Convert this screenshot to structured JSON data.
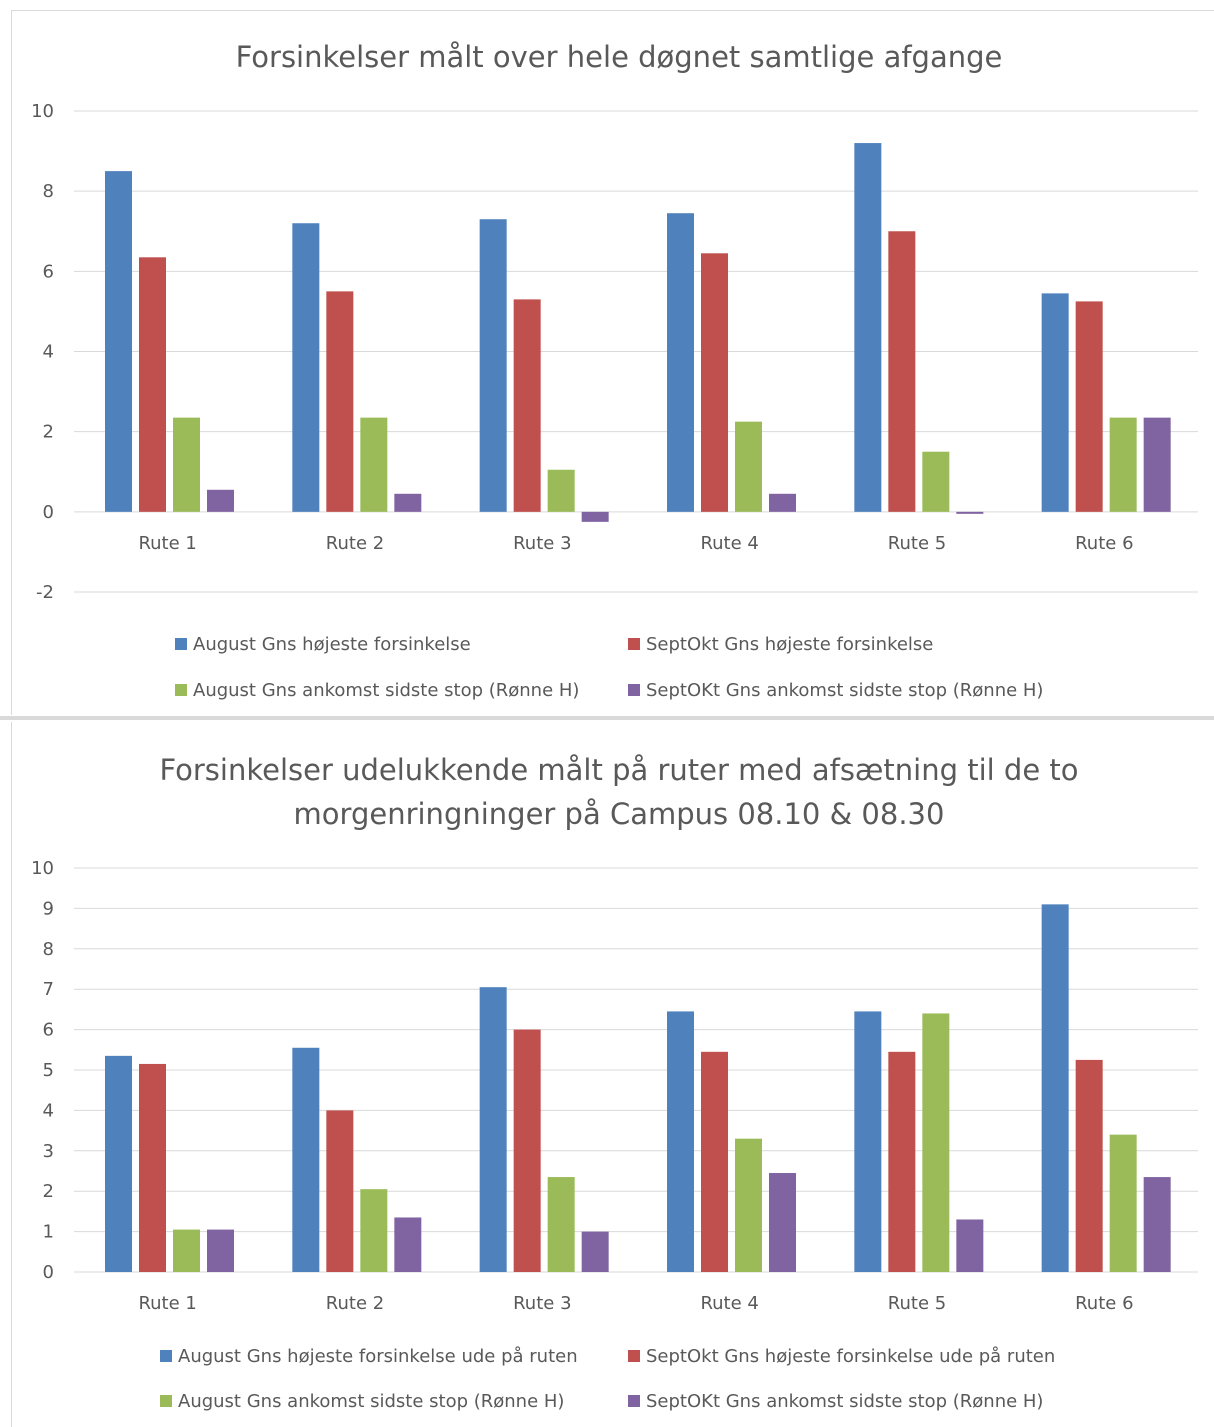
{
  "chart_data": [
    {
      "type": "bar",
      "title": "Forsinkelser målt over hele døgnet samtlige afgange",
      "categories": [
        "Rute 1",
        "Rute 2",
        "Rute 3",
        "Rute 4",
        "Rute 5",
        "Rute 6"
      ],
      "ylim": [
        -2,
        10
      ],
      "yticks": [
        -2,
        0,
        2,
        4,
        6,
        8,
        10
      ],
      "grid": true,
      "legend_position": "bottom",
      "series": [
        {
          "name": "August Gns højeste forsinkelse",
          "color": "#4f81bd",
          "values": [
            8.5,
            7.2,
            7.3,
            7.45,
            9.2,
            5.45
          ]
        },
        {
          "name": "SeptOkt Gns højeste forsinkelse",
          "color": "#c0504d",
          "values": [
            6.35,
            5.5,
            5.3,
            6.45,
            7.0,
            5.25
          ]
        },
        {
          "name": "August Gns ankomst sidste stop (Rønne H)",
          "color": "#9bbb59",
          "values": [
            2.35,
            2.35,
            1.05,
            2.25,
            1.5,
            2.35
          ]
        },
        {
          "name": "SeptOKt Gns ankomst sidste stop (Rønne H)",
          "color": "#8064a2",
          "values": [
            0.55,
            0.45,
            -0.25,
            0.45,
            -0.05,
            2.35
          ]
        }
      ]
    },
    {
      "type": "bar",
      "title": [
        "Forsinkelser udelukkende målt på ruter med afsætning til de to",
        "morgenringninger på Campus 08.10 & 08.30"
      ],
      "categories": [
        "Rute 1",
        "Rute 2",
        "Rute 3",
        "Rute 4",
        "Rute 5",
        "Rute 6"
      ],
      "ylim": [
        0,
        10
      ],
      "yticks": [
        0,
        1,
        2,
        3,
        4,
        5,
        6,
        7,
        8,
        9,
        10
      ],
      "grid": true,
      "legend_position": "bottom",
      "series": [
        {
          "name": "August Gns højeste forsinkelse ude på ruten",
          "color": "#4f81bd",
          "values": [
            5.35,
            5.55,
            7.05,
            6.45,
            6.45,
            9.1
          ]
        },
        {
          "name": "SeptOkt Gns højeste forsinkelse ude på ruten",
          "color": "#c0504d",
          "values": [
            5.15,
            4.0,
            6.0,
            5.45,
            5.45,
            5.25
          ]
        },
        {
          "name": "August Gns ankomst sidste stop (Rønne H)",
          "color": "#9bbb59",
          "values": [
            1.05,
            2.05,
            2.35,
            3.3,
            6.4,
            3.4
          ]
        },
        {
          "name": "SeptOKt Gns ankomst sidste stop (Rønne H)",
          "color": "#8064a2",
          "values": [
            1.05,
            1.35,
            1.0,
            2.45,
            1.3,
            2.35
          ]
        }
      ]
    }
  ]
}
